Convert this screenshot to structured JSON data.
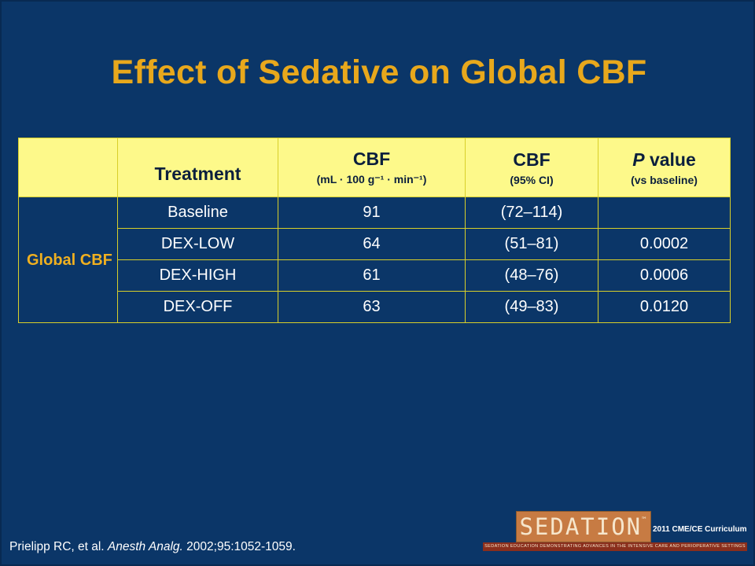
{
  "slide": {
    "title": "Effect of Sedative on Global CBF",
    "citation_authors": "Prielipp RC, et al. ",
    "citation_journal": "Anesth Analg.",
    "citation_details": " 2002;95:1052-1059."
  },
  "table": {
    "headers": {
      "treatment": "Treatment",
      "cbf": "CBF",
      "cbf_unit": "(mL · 100 g⁻¹ · min⁻¹)",
      "ci": "CBF",
      "ci_sub": "(95% CI)",
      "p_italic": "P",
      "p_rest": " value",
      "p_sub": "(vs baseline)"
    },
    "group_label": "Global CBF",
    "rows": [
      {
        "treatment": "Baseline",
        "cbf": "91",
        "ci": "(72–114)",
        "p": ""
      },
      {
        "treatment": "DEX-LOW",
        "cbf": "64",
        "ci": "(51–81)",
        "p": "0.0002"
      },
      {
        "treatment": "DEX-HIGH",
        "cbf": "61",
        "ci": "(48–76)",
        "p": "0.0006"
      },
      {
        "treatment": "DEX-OFF",
        "cbf": "63",
        "ci": "(49–83)",
        "p": "0.0120"
      }
    ]
  },
  "logo": {
    "word": "SEDATION",
    "tm": "™",
    "year_text": "2011 CME/CE Curriculum",
    "tagline": "SEDATION EDUCATION DEMONSTRATING ADVANCES IN THE INTENSIVE CARE AND PERIOPERATIVE SETTINGS"
  },
  "colors": {
    "background": "#0b3668",
    "title": "#e8a81c",
    "header_fill": "#fdf98a",
    "table_border": "#d8cf2a",
    "group_label": "#f0b020"
  }
}
